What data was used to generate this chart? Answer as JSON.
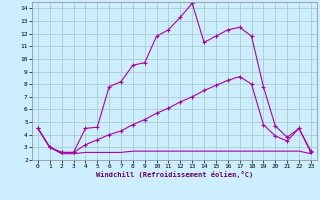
{
  "xlabel": "Windchill (Refroidissement éolien,°C)",
  "bg_color": "#cceeff",
  "line_color": "#aa00aa",
  "grid_color": "#aacccc",
  "xlim": [
    -0.5,
    23.5
  ],
  "ylim": [
    2,
    14.5
  ],
  "yticks": [
    2,
    3,
    4,
    5,
    6,
    7,
    8,
    9,
    10,
    11,
    12,
    13,
    14
  ],
  "xticks": [
    0,
    1,
    2,
    3,
    4,
    5,
    6,
    7,
    8,
    9,
    10,
    11,
    12,
    13,
    14,
    15,
    16,
    17,
    18,
    19,
    20,
    21,
    22,
    23
  ],
  "line1_x": [
    0,
    1,
    2,
    3,
    4,
    5,
    6,
    7,
    8,
    9,
    10,
    11,
    12,
    13,
    14,
    15,
    16,
    17,
    18,
    19,
    20,
    21,
    22,
    23
  ],
  "line1_y": [
    4.5,
    3.0,
    2.6,
    2.6,
    4.5,
    4.6,
    7.8,
    8.2,
    9.5,
    9.7,
    11.8,
    12.3,
    13.3,
    14.4,
    11.3,
    11.8,
    12.3,
    12.5,
    11.8,
    7.8,
    4.7,
    3.8,
    4.5,
    2.7
  ],
  "line2_x": [
    0,
    1,
    2,
    3,
    4,
    5,
    6,
    7,
    8,
    9,
    10,
    11,
    12,
    13,
    14,
    15,
    16,
    17,
    18,
    19,
    20,
    21,
    22,
    23
  ],
  "line2_y": [
    4.5,
    3.0,
    2.6,
    2.6,
    3.2,
    3.6,
    4.0,
    4.3,
    4.8,
    5.2,
    5.7,
    6.1,
    6.6,
    7.0,
    7.5,
    7.9,
    8.3,
    8.6,
    8.0,
    4.8,
    3.9,
    3.5,
    4.5,
    2.6
  ],
  "line3_x": [
    0,
    1,
    2,
    3,
    4,
    5,
    6,
    7,
    8,
    9,
    10,
    11,
    12,
    13,
    14,
    15,
    16,
    17,
    18,
    19,
    20,
    21,
    22,
    23
  ],
  "line3_y": [
    4.5,
    3.0,
    2.5,
    2.5,
    2.6,
    2.6,
    2.6,
    2.6,
    2.7,
    2.7,
    2.7,
    2.7,
    2.7,
    2.7,
    2.7,
    2.7,
    2.7,
    2.7,
    2.7,
    2.7,
    2.7,
    2.7,
    2.7,
    2.5
  ]
}
